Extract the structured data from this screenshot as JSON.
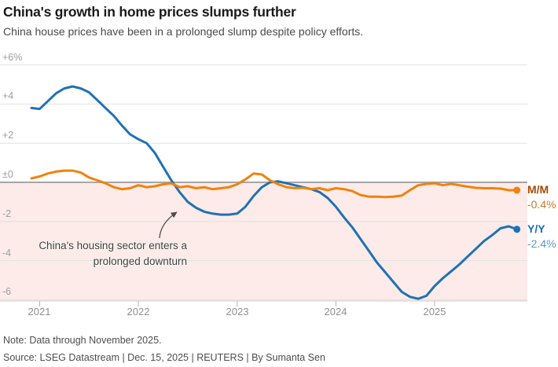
{
  "header": {
    "title": "China's growth in home prices slumps further",
    "subtitle": "China house prices have been in a prolonged slump despite policy efforts."
  },
  "chart_data": {
    "type": "line",
    "title": "China's growth in home prices slumps further",
    "frequency": "monthly",
    "x_start": "Dec 2020",
    "x_end": "Nov 2025",
    "ylim": [
      -6.2,
      6
    ],
    "grid": true,
    "negative_region_color": "#fcebe8",
    "y_ticks": [
      {
        "label": "+6%",
        "value": 6
      },
      {
        "label": "+4",
        "value": 4
      },
      {
        "label": "+2",
        "value": 2
      },
      {
        "label": "±0",
        "value": 0
      },
      {
        "label": "-2",
        "value": -2
      },
      {
        "label": "-4",
        "value": -4
      },
      {
        "label": "-6",
        "value": -6
      }
    ],
    "x_ticks": [
      {
        "label": "2021",
        "month_index": 1
      },
      {
        "label": "2022",
        "month_index": 13
      },
      {
        "label": "2023",
        "month_index": 25
      },
      {
        "label": "2024",
        "month_index": 37
      },
      {
        "label": "2025",
        "month_index": 49
      }
    ],
    "series": [
      {
        "name": "M/M",
        "end_value_label": "-0.4%",
        "color": "#f0820d",
        "name_color": "#a24b08",
        "value_color": "#cc7a2e",
        "values": [
          0.2,
          0.3,
          0.45,
          0.55,
          0.6,
          0.6,
          0.5,
          0.25,
          0.1,
          -0.05,
          -0.25,
          -0.35,
          -0.3,
          -0.15,
          -0.25,
          -0.2,
          -0.1,
          -0.05,
          -0.25,
          -0.2,
          -0.3,
          -0.25,
          -0.35,
          -0.3,
          -0.25,
          -0.1,
          0.15,
          0.45,
          0.4,
          0.1,
          -0.1,
          -0.25,
          -0.3,
          -0.28,
          -0.35,
          -0.3,
          -0.4,
          -0.3,
          -0.35,
          -0.45,
          -0.65,
          -0.73,
          -0.73,
          -0.75,
          -0.73,
          -0.68,
          -0.4,
          -0.15,
          -0.08,
          -0.05,
          -0.15,
          -0.08,
          -0.15,
          -0.22,
          -0.28,
          -0.3,
          -0.3,
          -0.32,
          -0.4,
          -0.4
        ]
      },
      {
        "name": "Y/Y",
        "end_value_label": "-2.4%",
        "color": "#2171b5",
        "name_color": "#1a6cb5",
        "value_color": "#5b96cc",
        "values": [
          3.8,
          3.75,
          4.15,
          4.55,
          4.8,
          4.9,
          4.8,
          4.6,
          4.2,
          3.8,
          3.4,
          2.9,
          2.45,
          2.2,
          2.0,
          1.5,
          0.8,
          0.1,
          -0.5,
          -1.0,
          -1.3,
          -1.5,
          -1.6,
          -1.65,
          -1.65,
          -1.6,
          -1.25,
          -0.7,
          -0.25,
          0.0,
          0.05,
          -0.05,
          -0.15,
          -0.25,
          -0.35,
          -0.5,
          -0.8,
          -1.25,
          -1.8,
          -2.3,
          -2.9,
          -3.5,
          -4.1,
          -4.6,
          -5.1,
          -5.6,
          -5.85,
          -5.95,
          -5.8,
          -5.3,
          -4.9,
          -4.55,
          -4.2,
          -3.8,
          -3.4,
          -3.0,
          -2.7,
          -2.35,
          -2.25,
          -2.4
        ]
      }
    ],
    "annotation": {
      "line1": "China's housing sector enters a",
      "line2": "prolonged downturn"
    }
  },
  "footer": {
    "note": "Note: Data through November 2025.",
    "source": "Source: LSEG Datastream | Dec. 15, 2025 | REUTERS | By Sumanta Sen"
  }
}
